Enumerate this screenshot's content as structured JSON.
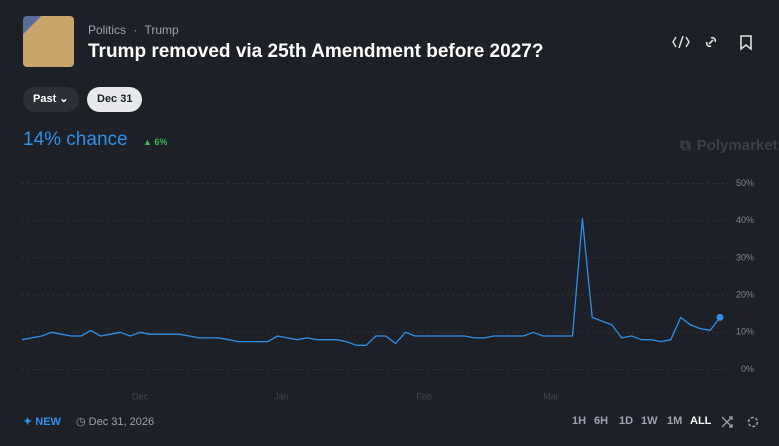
{
  "header": {
    "breadcrumb": [
      "Politics",
      "Trump"
    ],
    "title": "Trump removed via 25th Amendment before 2027?"
  },
  "filters": {
    "past": "Past",
    "date": "Dec 31"
  },
  "chance": {
    "label": "14% chance",
    "change": "6%"
  },
  "brand": "Polymarket",
  "chart_data": {
    "type": "line",
    "x": [
      0,
      1,
      2,
      3,
      4,
      5,
      6,
      7,
      8,
      9,
      10,
      11,
      12,
      13,
      14,
      15,
      16,
      17,
      18,
      19,
      20,
      21,
      22,
      23,
      24,
      25,
      26,
      27,
      28,
      29,
      30,
      31,
      32,
      33,
      34,
      35,
      36,
      37,
      38,
      39,
      40,
      41,
      42,
      43,
      44,
      45,
      46,
      47,
      48,
      49,
      50,
      51,
      52,
      53,
      54,
      55,
      56,
      57,
      58,
      59,
      60,
      61,
      62,
      63,
      64,
      65,
      66,
      67,
      68,
      69,
      70,
      71
    ],
    "series": [
      {
        "color": "#2e8fe8",
        "values": [
          8,
          8.5,
          9,
          10,
          9.5,
          9,
          9,
          10.5,
          9,
          9.5,
          10,
          9,
          10,
          9.5,
          9.5,
          9.5,
          9.5,
          9,
          8.5,
          8.5,
          8.5,
          8,
          7.5,
          7.5,
          7.5,
          7.5,
          9,
          8.5,
          8,
          8.5,
          8,
          8,
          8,
          7.5,
          6.5,
          6.5,
          9,
          9,
          7,
          10,
          9,
          9,
          9,
          9,
          9,
          9,
          8.5,
          8.5,
          9,
          9,
          9,
          9,
          10,
          9,
          9,
          9,
          9,
          40.5,
          14,
          13,
          12,
          8.5,
          9,
          8,
          8,
          7.5,
          8,
          14,
          12,
          11,
          10.5,
          14
        ]
      }
    ],
    "xlim": [
      0,
      71
    ],
    "xticks": [
      {
        "value": 12,
        "label": "Dec"
      },
      {
        "value": 26.4,
        "label": "Jan"
      },
      {
        "value": 40.9,
        "label": "Feb"
      },
      {
        "value": 53.8,
        "label": "Mar"
      }
    ],
    "ylim": [
      0,
      50
    ],
    "yticks": [
      {
        "value": 0,
        "label": "0%"
      },
      {
        "value": 10,
        "label": "10%"
      },
      {
        "value": 20,
        "label": "20%"
      },
      {
        "value": 30,
        "label": "30%"
      },
      {
        "value": 40,
        "label": "40%"
      },
      {
        "value": 50,
        "label": "50%"
      }
    ],
    "grid": true
  },
  "footer": {
    "new": "NEW",
    "date": "Dec 31, 2026",
    "ranges": [
      "1H",
      "6H",
      "1D",
      "1W",
      "1M",
      "ALL"
    ],
    "active_range": 5
  }
}
